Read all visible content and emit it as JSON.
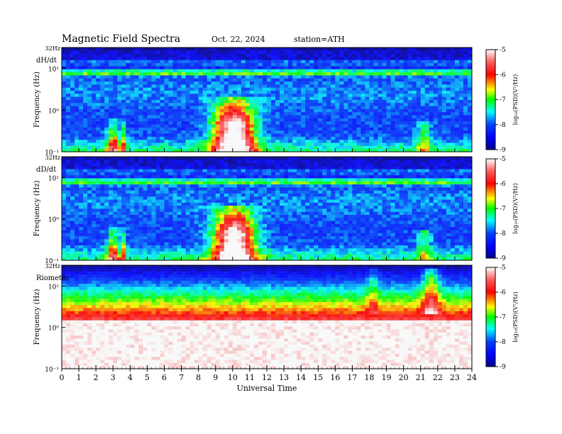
{
  "header": {
    "title": "Magnetic  Field  Spectra",
    "date": "Oct. 22, 2024",
    "station": "station=ATH"
  },
  "panels": [
    {
      "label": "dH/dt",
      "top_label": "32Hz"
    },
    {
      "label": "dD/dt",
      "top_label": "32Hz"
    },
    {
      "label": "Riometer",
      "top_label": "32Hz"
    }
  ],
  "axes": {
    "ylabel": "Frequency (Hz)",
    "xlabel": "Universal Time",
    "y_tick_labels": [
      "10¹",
      "10⁰",
      "10⁻¹"
    ],
    "x_tick_labels": [
      "0",
      "1",
      "2",
      "3",
      "4",
      "5",
      "6",
      "7",
      "8",
      "9",
      "10",
      "11",
      "12",
      "13",
      "14",
      "15",
      "16",
      "17",
      "18",
      "19",
      "20",
      "21",
      "22",
      "23",
      "24"
    ]
  },
  "colorbar": {
    "label": "log₁₀(PSD)(V²/Hz)",
    "tick_labels": [
      "-5",
      "-6",
      "-7",
      "-8",
      "-9"
    ],
    "colors": [
      "#ffffff",
      "#ff0000",
      "#ffff00",
      "#00ff00",
      "#00ffff",
      "#0000ff",
      "#00008b"
    ]
  },
  "chart_data": [
    {
      "type": "heatmap",
      "title": "dH/dt",
      "xlabel": "Universal Time",
      "ylabel": "Frequency (Hz)",
      "x_range": [
        0,
        24
      ],
      "y_range": [
        0.1,
        32
      ],
      "y_scale": "log",
      "z_range": [
        -9,
        -5
      ],
      "z_label": "log10(PSD)(V^2/Hz)",
      "features": [
        {
          "name": "Schumann band",
          "freq_hz": 8,
          "log_psd": -6.8
        },
        {
          "name": "low-frequency enhancement",
          "ut_start": 8.0,
          "ut_end": 11.8,
          "freq_max_hz": 2.0,
          "log_psd_peak": -5.0
        },
        {
          "name": "low-frequency burst",
          "ut_start": 2.6,
          "ut_end": 3.7,
          "freq_max_hz": 0.6,
          "log_psd_peak": -6.5
        }
      ]
    },
    {
      "type": "heatmap",
      "title": "dD/dt",
      "xlabel": "Universal Time",
      "ylabel": "Frequency (Hz)",
      "x_range": [
        0,
        24
      ],
      "y_range": [
        0.1,
        32
      ],
      "y_scale": "log",
      "z_range": [
        -9,
        -5
      ],
      "z_label": "log10(PSD)(V^2/Hz)",
      "features": [
        {
          "name": "Schumann band",
          "freq_hz": 8,
          "log_psd": -6.8
        },
        {
          "name": "low-frequency enhancement",
          "ut_start": 8.5,
          "ut_end": 11.8,
          "freq_max_hz": 1.8,
          "log_psd_peak": -5.0
        },
        {
          "name": "low-frequency burst",
          "ut_start": 2.6,
          "ut_end": 3.7,
          "freq_max_hz": 0.6,
          "log_psd_peak": -6.5
        }
      ]
    },
    {
      "type": "heatmap",
      "title": "Riometer",
      "xlabel": "Universal Time",
      "ylabel": "Frequency (Hz)",
      "x_range": [
        0,
        24
      ],
      "y_range": [
        0.1,
        32
      ],
      "y_scale": "log",
      "z_range": [
        -9,
        -5
      ],
      "z_label": "log10(PSD)(V^2/Hz)",
      "features": [
        {
          "name": "saturated low frequencies",
          "freq_max_hz": 3,
          "log_psd": -5.0
        },
        {
          "name": "gradient band",
          "freq_min_hz": 3,
          "freq_max_hz": 25
        },
        {
          "name": "disturbance",
          "ut_start": 17.5,
          "ut_end": 22.5,
          "log_psd_peak": -5.0
        }
      ]
    }
  ]
}
